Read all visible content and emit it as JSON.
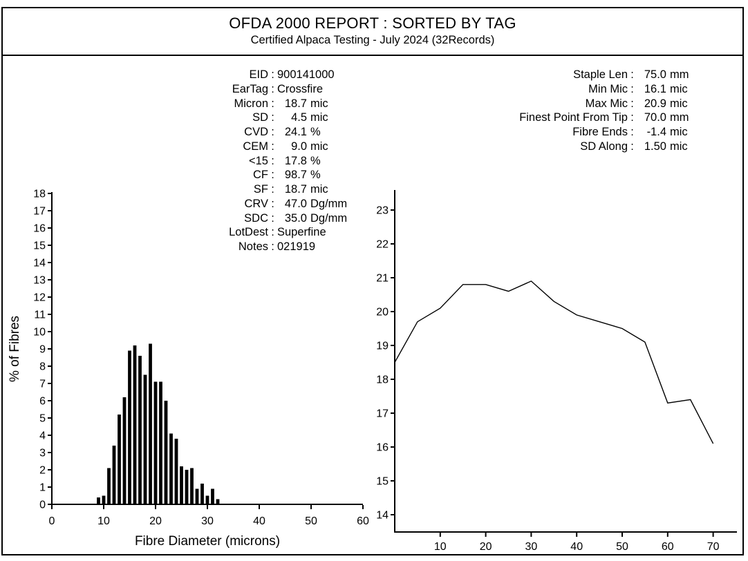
{
  "report": {
    "title": "OFDA 2000 REPORT : SORTED BY TAG",
    "subtitle": "Certified Alpaca Testing - July 2024 (32Records)"
  },
  "sample_info": {
    "rows": [
      {
        "label": "EID",
        "text": "900141000"
      },
      {
        "label": "EarTag",
        "text": "Crossfire"
      },
      {
        "label": "Micron",
        "num": "18.7",
        "unit": "mic"
      },
      {
        "label": "SD",
        "num": "4.5",
        "unit": "mic"
      },
      {
        "label": "CVD",
        "num": "24.1",
        "unit": "%"
      },
      {
        "label": "CEM",
        "num": "9.0",
        "unit": "mic"
      },
      {
        "label": "<15",
        "num": "17.8",
        "unit": "%"
      },
      {
        "label": "CF",
        "num": "98.7",
        "unit": "%"
      },
      {
        "label": "SF",
        "num": "18.7",
        "unit": "mic"
      },
      {
        "label": "CRV",
        "num": "47.0",
        "unit": "Dg/mm"
      },
      {
        "label": "SDC",
        "num": "35.0",
        "unit": "Dg/mm"
      },
      {
        "label": "LotDest",
        "text": "Superfine"
      },
      {
        "label": "Notes",
        "text": "021919"
      }
    ]
  },
  "staple_info": {
    "rows": [
      {
        "label": "Staple Len",
        "num": "75.0",
        "unit": "mm"
      },
      {
        "label": "Min Mic",
        "num": "16.1",
        "unit": "mic"
      },
      {
        "label": "Max Mic",
        "num": "20.9",
        "unit": "mic"
      },
      {
        "label": "Finest Point From Tip",
        "num": "70.0",
        "unit": "mm"
      },
      {
        "label": "Fibre Ends",
        "num": "-1.4",
        "unit": "mic"
      },
      {
        "label": "SD Along",
        "num": "1.50",
        "unit": "mic"
      }
    ]
  },
  "chart_data": [
    {
      "type": "bar",
      "title": "",
      "xlabel": "Fibre Diameter (microns)",
      "ylabel": "% of Fibres",
      "xlim": [
        0,
        60
      ],
      "ylim": [
        0,
        18
      ],
      "x_ticks": [
        0,
        10,
        20,
        30,
        40,
        50,
        60
      ],
      "y_ticks": [
        0,
        1,
        2,
        3,
        4,
        5,
        6,
        7,
        8,
        9,
        10,
        11,
        12,
        13,
        14,
        15,
        16,
        17,
        18
      ],
      "bin_microns": [
        9,
        10,
        11,
        12,
        13,
        14,
        15,
        16,
        17,
        18,
        19,
        20,
        21,
        22,
        23,
        24,
        25,
        26,
        27,
        28,
        29,
        30,
        31,
        32
      ],
      "values": [
        0.4,
        0.5,
        2.1,
        3.4,
        5.2,
        6.2,
        8.9,
        9.2,
        8.6,
        7.5,
        9.3,
        7.1,
        7.1,
        6.0,
        4.1,
        3.8,
        2.2,
        2.0,
        2.1,
        0.9,
        1.2,
        0.5,
        0.9,
        0.3
      ],
      "bar_color": "#000000",
      "grid": false
    },
    {
      "type": "line",
      "title": "",
      "xlabel": "",
      "ylabel": "",
      "xlim": [
        0,
        75
      ],
      "ylim": [
        13.5,
        23.5
      ],
      "x_ticks": [
        10,
        20,
        30,
        40,
        50,
        60,
        70
      ],
      "y_ticks": [
        14,
        15,
        16,
        17,
        18,
        19,
        20,
        21,
        22,
        23
      ],
      "x_mm": [
        0,
        5,
        10,
        15,
        20,
        25,
        30,
        35,
        40,
        45,
        50,
        55,
        60,
        65,
        70
      ],
      "y_mic": [
        18.5,
        19.7,
        20.1,
        20.8,
        20.8,
        20.6,
        20.9,
        20.3,
        19.9,
        19.7,
        19.5,
        19.1,
        17.3,
        17.4,
        16.1
      ],
      "line_color": "#000000",
      "grid": false
    }
  ]
}
